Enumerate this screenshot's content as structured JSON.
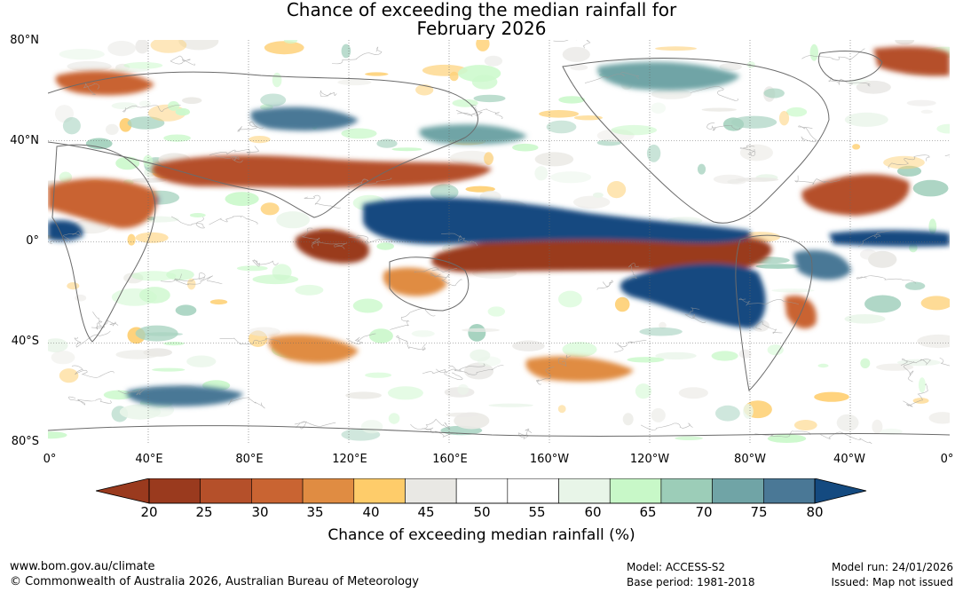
{
  "title": {
    "line1": "Chance of exceeding the median rainfall for",
    "line2": "February 2026"
  },
  "lat_labels": [
    "80°N",
    "40°N",
    "0°",
    "40°S",
    "80°S"
  ],
  "lon_labels": [
    "0°",
    "40°E",
    "80°E",
    "120°E",
    "160°E",
    "160°W",
    "120°W",
    "80°W",
    "40°W",
    "0°"
  ],
  "colorbar": {
    "ticks": [
      "20",
      "25",
      "30",
      "35",
      "40",
      "45",
      "50",
      "55",
      "60",
      "65",
      "70",
      "75",
      "80"
    ],
    "colors": [
      "#9a3a1e",
      "#b5502a",
      "#c96432",
      "#e08c42",
      "#fecc6a",
      "#e9e8e4",
      "#ffffff",
      "#ffffff",
      "#e8f5e8",
      "#c8f8c8",
      "#9ccdb8",
      "#70a4a6",
      "#4a7896"
    ],
    "low_color": "#9a3a1e",
    "high_color": "#144a80",
    "label": "Chance of exceeding median rainfall (%)"
  },
  "footer": {
    "website": "www.bom.gov.au/climate",
    "copyright": "© Commonwealth of Australia 2026, Australian Bureau of Meteorology",
    "model": "Model: ACCESS-S2",
    "base_period": "Base period: 1981-2018",
    "model_run": "Model run: 24/01/2026",
    "issued": "Issued: Map not issued"
  }
}
